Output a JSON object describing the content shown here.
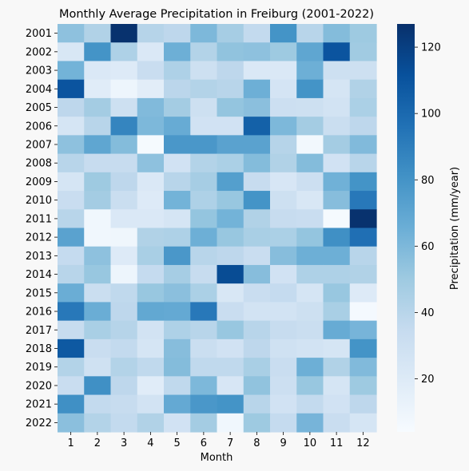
{
  "chart_data": {
    "type": "heatmap",
    "title": "Monthly Average Precipitation in Freiburg (2001-2022)",
    "xlabel": "Month",
    "ylabel": "",
    "x_categories": [
      "1",
      "2",
      "3",
      "4",
      "5",
      "6",
      "7",
      "8",
      "9",
      "10",
      "11",
      "12"
    ],
    "y_categories": [
      "2001",
      "2002",
      "2003",
      "2004",
      "2005",
      "2006",
      "2007",
      "2008",
      "2009",
      "2010",
      "2011",
      "2012",
      "2013",
      "2014",
      "2015",
      "2016",
      "2017",
      "2018",
      "2019",
      "2020",
      "2021",
      "2022"
    ],
    "values": [
      [
        55,
        43,
        126,
        41,
        38,
        60,
        47,
        36,
        80,
        40,
        58,
        50
      ],
      [
        23,
        80,
        44,
        22,
        65,
        42,
        54,
        55,
        50,
        70,
        110,
        49
      ],
      [
        63,
        22,
        20,
        33,
        44,
        30,
        38,
        22,
        22,
        65,
        30,
        30
      ],
      [
        110,
        18,
        10,
        17,
        39,
        42,
        40,
        65,
        26,
        80,
        25,
        43
      ],
      [
        38,
        48,
        30,
        59,
        48,
        30,
        53,
        56,
        31,
        30,
        27,
        45
      ],
      [
        25,
        40,
        87,
        60,
        67,
        28,
        28,
        104,
        60,
        48,
        32,
        38
      ],
      [
        55,
        70,
        58,
        5,
        78,
        78,
        72,
        72,
        41,
        7,
        48,
        59
      ],
      [
        40,
        34,
        34,
        55,
        28,
        42,
        45,
        58,
        43,
        58,
        28,
        40
      ],
      [
        25,
        50,
        38,
        22,
        40,
        47,
        74,
        34,
        24,
        31,
        64,
        80
      ],
      [
        33,
        48,
        32,
        20,
        63,
        44,
        52,
        80,
        30,
        23,
        57,
        93
      ],
      [
        40,
        8,
        22,
        22,
        25,
        53,
        63,
        43,
        34,
        33,
        5,
        126
      ],
      [
        72,
        8,
        9,
        43,
        44,
        65,
        52,
        46,
        45,
        53,
        82,
        97
      ],
      [
        35,
        55,
        20,
        46,
        78,
        40,
        38,
        33,
        57,
        65,
        65,
        40
      ],
      [
        40,
        52,
        10,
        35,
        47,
        34,
        114,
        57,
        28,
        44,
        44,
        43
      ],
      [
        66,
        32,
        37,
        52,
        56,
        45,
        23,
        33,
        35,
        25,
        52,
        20
      ],
      [
        93,
        66,
        38,
        69,
        68,
        93,
        33,
        27,
        27,
        30,
        46,
        6
      ],
      [
        34,
        46,
        41,
        27,
        44,
        40,
        52,
        40,
        34,
        32,
        67,
        62
      ],
      [
        108,
        33,
        36,
        25,
        57,
        32,
        28,
        38,
        29,
        27,
        25,
        80
      ],
      [
        42,
        29,
        42,
        37,
        58,
        37,
        37,
        46,
        33,
        65,
        43,
        59
      ],
      [
        33,
        82,
        38,
        18,
        37,
        60,
        24,
        54,
        31,
        52,
        25,
        50
      ],
      [
        82,
        36,
        34,
        27,
        68,
        78,
        80,
        40,
        28,
        36,
        28,
        38
      ],
      [
        56,
        42,
        36,
        43,
        28,
        48,
        8,
        50,
        35,
        62,
        33,
        25
      ]
    ],
    "vmin": 4,
    "vmax": 127,
    "colormap": "Blues",
    "colorbar": {
      "label": "Precipitation (mm/year)",
      "ticks": [
        20,
        40,
        60,
        80,
        100,
        120
      ]
    },
    "grid": false,
    "legend": "colorbar-right"
  }
}
